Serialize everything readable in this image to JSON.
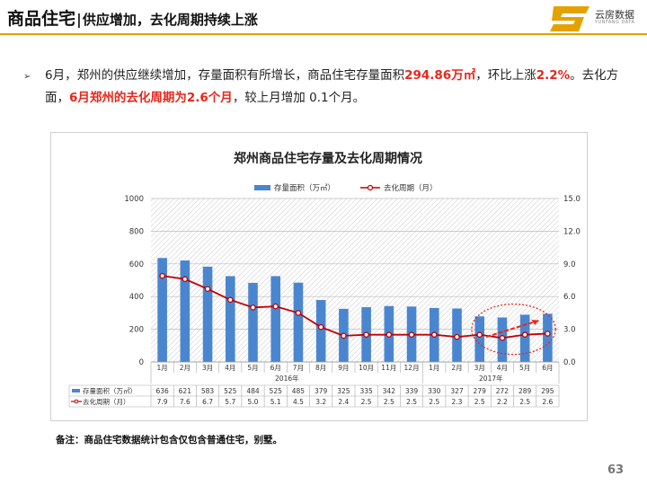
{
  "header": {
    "title_main": "商品住宅",
    "title_sep": "|",
    "title_sub": "供应增加，去化周期持续上涨",
    "logo_text": "云房数据",
    "logo_sub": "YUNFANG DATA",
    "accent_color": "#e3a200"
  },
  "bullet": {
    "p1": "6月，郑州的供应继续增加，存量面积有所增长，商品住宅存量面积",
    "h1": "294.86万㎡",
    "p2": "，环比上涨",
    "h2": "2.2%",
    "p3": "。去化方面，",
    "h3": "6月郑州的去化周期为2.6个月",
    "p4": "，较上月增加 0.1个月。",
    "highlight_color": "#e8261a"
  },
  "chart_data": {
    "type": "bar",
    "title": "郑州商品住宅存量及去化周期情况",
    "categories": [
      "1月",
      "2月",
      "3月",
      "4月",
      "5月",
      "6月",
      "7月",
      "8月",
      "9月",
      "10月",
      "11月",
      "12月",
      "1月",
      "2月",
      "3月",
      "4月",
      "5月",
      "6月"
    ],
    "year_groups": [
      {
        "label": "2016年",
        "count": 12
      },
      {
        "label": "2017年",
        "count": 6
      }
    ],
    "series": [
      {
        "name": "存量面积（万㎡）",
        "type": "bar",
        "axis": "left",
        "color": "#4a86d0",
        "values": [
          636,
          621,
          583,
          525,
          484,
          525,
          485,
          379,
          325,
          335,
          342,
          339,
          330,
          327,
          279,
          272,
          289,
          295
        ]
      },
      {
        "name": "去化周期（月）",
        "type": "line",
        "axis": "right",
        "color": "#c00000",
        "values": [
          7.9,
          7.6,
          6.7,
          5.7,
          5.0,
          5.1,
          4.5,
          3.2,
          2.4,
          2.5,
          2.5,
          2.5,
          2.5,
          2.3,
          2.5,
          2.2,
          2.5,
          2.6
        ]
      }
    ],
    "y_left": {
      "min": 0,
      "max": 1000,
      "ticks": [
        0,
        200,
        400,
        600,
        800,
        1000
      ]
    },
    "y_right": {
      "min": 0,
      "max": 15,
      "ticks": [
        "0.0",
        "3.0",
        "6.0",
        "9.0",
        "12.0",
        "15.0"
      ]
    },
    "legend_position": "top",
    "table_labels": [
      "存量面积（万㎡）",
      "去化周期（月）"
    ]
  },
  "note": "备注：商品住宅数据统计包含仅包含普通住宅，别墅。",
  "page_number": "63"
}
